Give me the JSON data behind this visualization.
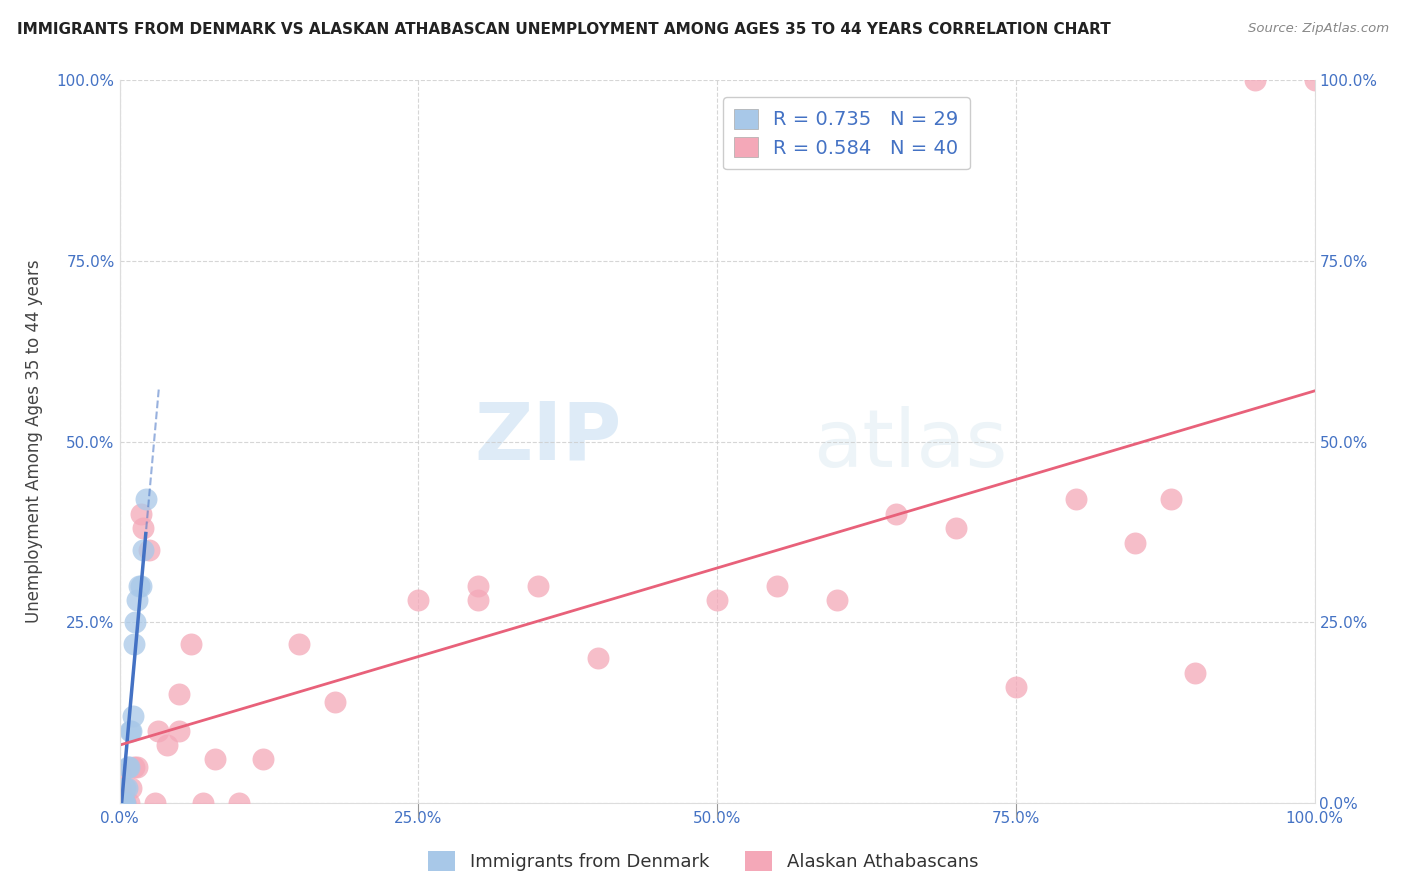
{
  "title": "IMMIGRANTS FROM DENMARK VS ALASKAN ATHABASCAN UNEMPLOYMENT AMONG AGES 35 TO 44 YEARS CORRELATION CHART",
  "source": "Source: ZipAtlas.com",
  "ylabel": "Unemployment Among Ages 35 to 44 years",
  "xlim": [
    0,
    1.0
  ],
  "ylim": [
    0,
    1.0
  ],
  "xticks": [
    0.0,
    0.25,
    0.5,
    0.75,
    1.0
  ],
  "yticks": [
    0.0,
    0.25,
    0.5,
    0.75,
    1.0
  ],
  "watermark_zip": "ZIP",
  "watermark_atlas": "atlas",
  "blue_color": "#4472c4",
  "pink_color": "#e8617a",
  "blue_scatter_color": "#a8c8e8",
  "pink_scatter_color": "#f4a8b8",
  "denmark_points": [
    [
      0.0,
      0.0
    ],
    [
      0.0,
      0.0
    ],
    [
      0.0,
      0.0
    ],
    [
      0.0,
      0.0
    ],
    [
      0.0,
      0.0
    ],
    [
      0.0,
      0.0
    ],
    [
      0.0,
      0.0
    ],
    [
      0.0,
      0.0
    ],
    [
      0.0,
      0.0
    ],
    [
      0.002,
      0.0
    ],
    [
      0.002,
      0.0
    ],
    [
      0.002,
      0.0
    ],
    [
      0.004,
      0.0
    ],
    [
      0.004,
      0.0
    ],
    [
      0.005,
      0.0
    ],
    [
      0.005,
      0.02
    ],
    [
      0.006,
      0.02
    ],
    [
      0.007,
      0.05
    ],
    [
      0.008,
      0.05
    ],
    [
      0.009,
      0.1
    ],
    [
      0.01,
      0.1
    ],
    [
      0.011,
      0.12
    ],
    [
      0.012,
      0.22
    ],
    [
      0.013,
      0.25
    ],
    [
      0.015,
      0.28
    ],
    [
      0.016,
      0.3
    ],
    [
      0.018,
      0.3
    ],
    [
      0.02,
      0.35
    ],
    [
      0.022,
      0.42
    ]
  ],
  "athabascan_points": [
    [
      0.0,
      0.0
    ],
    [
      0.0,
      0.02
    ],
    [
      0.0,
      0.04
    ],
    [
      0.005,
      0.0
    ],
    [
      0.008,
      0.0
    ],
    [
      0.01,
      0.02
    ],
    [
      0.012,
      0.05
    ],
    [
      0.015,
      0.05
    ],
    [
      0.018,
      0.4
    ],
    [
      0.02,
      0.38
    ],
    [
      0.025,
      0.35
    ],
    [
      0.03,
      0.0
    ],
    [
      0.032,
      0.1
    ],
    [
      0.04,
      0.08
    ],
    [
      0.05,
      0.1
    ],
    [
      0.05,
      0.15
    ],
    [
      0.06,
      0.22
    ],
    [
      0.07,
      0.0
    ],
    [
      0.08,
      0.06
    ],
    [
      0.1,
      0.0
    ],
    [
      0.12,
      0.06
    ],
    [
      0.15,
      0.22
    ],
    [
      0.18,
      0.14
    ],
    [
      0.25,
      0.28
    ],
    [
      0.3,
      0.28
    ],
    [
      0.3,
      0.3
    ],
    [
      0.35,
      0.3
    ],
    [
      0.4,
      0.2
    ],
    [
      0.5,
      0.28
    ],
    [
      0.55,
      0.3
    ],
    [
      0.6,
      0.28
    ],
    [
      0.65,
      0.4
    ],
    [
      0.7,
      0.38
    ],
    [
      0.75,
      0.16
    ],
    [
      0.8,
      0.42
    ],
    [
      0.85,
      0.36
    ],
    [
      0.88,
      0.42
    ],
    [
      0.9,
      0.18
    ],
    [
      0.95,
      1.0
    ],
    [
      1.0,
      1.0
    ]
  ],
  "background_color": "#ffffff",
  "grid_color": "#cccccc"
}
